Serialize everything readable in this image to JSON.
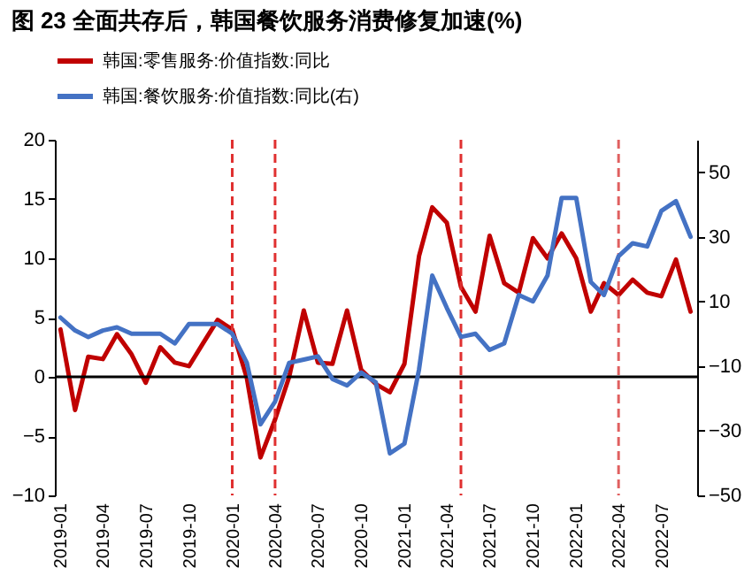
{
  "chart_data": {
    "type": "line",
    "title": "图 23 全面共存后，韩国餐饮服务消费修复加速(%)",
    "x": [
      "2019-01",
      "2019-02",
      "2019-03",
      "2019-04",
      "2019-05",
      "2019-06",
      "2019-07",
      "2019-08",
      "2019-09",
      "2019-10",
      "2019-11",
      "2019-12",
      "2020-01",
      "2020-02",
      "2020-03",
      "2020-04",
      "2020-05",
      "2020-06",
      "2020-07",
      "2020-08",
      "2020-09",
      "2020-10",
      "2020-11",
      "2020-12",
      "2021-01",
      "2021-02",
      "2021-03",
      "2021-04",
      "2021-05",
      "2021-06",
      "2021-07",
      "2021-08",
      "2021-09",
      "2021-10",
      "2021-11",
      "2021-12",
      "2022-01",
      "2022-02",
      "2022-03",
      "2022-04",
      "2022-05",
      "2022-06",
      "2022-07",
      "2022-08",
      "2022-09"
    ],
    "series": [
      {
        "name": "韩国:零售服务:价值指数:同比",
        "color": "#c00000",
        "values": [
          4.0,
          -2.8,
          1.7,
          1.5,
          3.6,
          1.9,
          -0.5,
          2.5,
          1.2,
          0.9,
          2.9,
          4.8,
          4.0,
          -0.1,
          -6.8,
          -3.6,
          0.0,
          5.6,
          1.2,
          1.1,
          5.6,
          0.6,
          -0.6,
          -1.3,
          1.1,
          10.2,
          14.3,
          13.0,
          7.6,
          5.5,
          11.9,
          7.9,
          7.1,
          11.7,
          10.0,
          12.1,
          10.0,
          5.5,
          7.9,
          6.9,
          8.2,
          7.1,
          6.8,
          9.9,
          5.5
        ]
      },
      {
        "name": "韩国:餐饮服务:价值指数:同比(右)",
        "color": "#4472c4",
        "axis": "y2",
        "values": [
          5,
          1,
          -1,
          1,
          2,
          0,
          0,
          0,
          -3,
          3,
          3,
          3,
          0,
          -9,
          -28,
          -21,
          -9,
          -8,
          -7,
          -14,
          -16,
          -12,
          -15,
          -37,
          -34,
          -11,
          18,
          8,
          -1,
          0,
          -5,
          -3,
          12,
          10,
          18,
          42,
          42,
          16,
          12,
          24,
          28,
          27,
          38,
          41,
          30
        ]
      }
    ],
    "xlim": [
      "2018-12-20",
      "2022-09-15"
    ],
    "xticks": [
      "2019-01",
      "2019-04",
      "2019-07",
      "2019-10",
      "2020-01",
      "2020-04",
      "2020-07",
      "2020-10",
      "2021-01",
      "2021-04",
      "2021-07",
      "2021-10",
      "2022-01",
      "2022-04",
      "2022-07"
    ],
    "ylim": [
      -10,
      20
    ],
    "yticks": [
      -10,
      -5,
      0,
      5,
      10,
      15,
      20
    ],
    "y2lim": [
      -50,
      60
    ],
    "y2ticks": [
      -50,
      -30,
      -10,
      10,
      30,
      50
    ],
    "ref_lines": [
      {
        "axis": "y",
        "value": 0,
        "color": "#000000"
      },
      {
        "axis": "x",
        "value": "2020-01",
        "color": "#e03030",
        "line_style": "dashed"
      },
      {
        "axis": "x",
        "value": "2020-04",
        "color": "#e03030",
        "line_style": "dashed"
      },
      {
        "axis": "x",
        "value": "2021-05",
        "color": "#e03030",
        "line_style": "dashed"
      },
      {
        "axis": "x",
        "value": "2022-04",
        "color": "#e06060",
        "line_style": "dashed"
      }
    ],
    "grid": false,
    "legend": "top",
    "line_style": "solid"
  }
}
